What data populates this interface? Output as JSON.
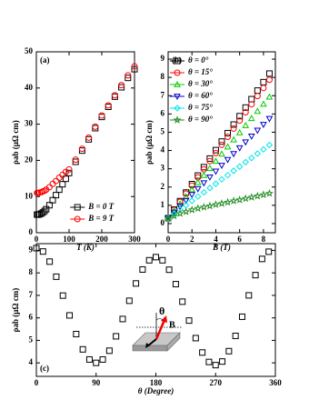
{
  "chart_data": [
    {
      "type": "scatter",
      "label": "(a)",
      "xlabel": "T (K)",
      "ylabel": "ρab (μΩ cm)",
      "xlim": [
        0,
        300
      ],
      "xticks": [
        0,
        100,
        200,
        300
      ],
      "ylim": [
        0,
        50
      ],
      "yticks": [
        0,
        10,
        20,
        30,
        40,
        50
      ],
      "legend": "lower right",
      "x": [
        2,
        5,
        10,
        15,
        20,
        25,
        30,
        40,
        50,
        60,
        70,
        80,
        90,
        100,
        120,
        140,
        160,
        180,
        200,
        220,
        240,
        260,
        280,
        300
      ],
      "series": [
        {
          "name": "B = 0 T",
          "color": "#000000",
          "marker": "square",
          "values": [
            5.0,
            5.0,
            5.1,
            5.3,
            5.6,
            6.0,
            6.5,
            7.6,
            9.0,
            10.4,
            11.9,
            13.4,
            14.9,
            16.5,
            19.6,
            22.7,
            25.8,
            28.9,
            32.0,
            34.8,
            37.6,
            40.2,
            42.8,
            45.2
          ]
        },
        {
          "name": "B = 9 T",
          "color": "#ff0000",
          "marker": "circle",
          "values": [
            11.0,
            11.0,
            11.1,
            11.2,
            11.4,
            11.6,
            11.9,
            12.6,
            13.5,
            14.3,
            15.2,
            16.0,
            16.8,
            17.5,
            20.2,
            23.2,
            26.3,
            29.3,
            32.4,
            35.2,
            38.0,
            40.8,
            43.5,
            46.0
          ]
        }
      ]
    },
    {
      "type": "scatter",
      "label": "(b)",
      "xlabel": "B (T)",
      "ylabel": "ρab (μΩ cm)",
      "xlim": [
        0,
        9
      ],
      "xticks": [
        0,
        2,
        4,
        6,
        8
      ],
      "ylim": [
        -0.5,
        9.4
      ],
      "yticks": [
        0,
        1,
        2,
        3,
        4,
        5,
        6,
        7,
        8,
        9
      ],
      "legend": "upper left",
      "x": [
        0,
        0.5,
        1,
        1.5,
        2,
        2.5,
        3,
        3.5,
        4,
        4.5,
        5,
        5.5,
        6,
        6.5,
        7,
        7.5,
        8,
        8.5
      ],
      "series": [
        {
          "name": "θ = 0°",
          "color": "#000000",
          "marker": "square",
          "values": [
            0.3,
            0.77,
            1.23,
            1.7,
            2.16,
            2.63,
            3.09,
            3.56,
            4.02,
            4.49,
            4.95,
            5.42,
            5.88,
            6.35,
            6.81,
            7.28,
            7.74,
            8.21
          ]
        },
        {
          "name": "θ = 15°",
          "color": "#ff0000",
          "marker": "circle",
          "values": [
            0.3,
            0.75,
            1.19,
            1.64,
            2.08,
            2.53,
            2.97,
            3.42,
            3.86,
            4.31,
            4.75,
            5.2,
            5.64,
            6.09,
            6.53,
            6.98,
            7.42,
            7.87
          ]
        },
        {
          "name": "θ = 30°",
          "color": "#00cc00",
          "marker": "triangle",
          "values": [
            0.3,
            0.69,
            1.08,
            1.47,
            1.86,
            2.25,
            2.64,
            3.03,
            3.42,
            3.81,
            4.2,
            4.59,
            4.98,
            5.37,
            5.76,
            6.15,
            6.54,
            6.93
          ]
        },
        {
          "name": "θ = 60°",
          "color": "#0000cc",
          "marker": "triangle-down",
          "values": [
            0.3,
            0.62,
            0.94,
            1.26,
            1.58,
            1.9,
            2.22,
            2.54,
            2.86,
            3.18,
            3.5,
            3.82,
            4.14,
            4.46,
            4.78,
            5.1,
            5.42,
            5.74
          ]
        },
        {
          "name": "θ = 75°",
          "color": "#00e5ee",
          "marker": "diamond",
          "values": [
            0.3,
            0.54,
            0.77,
            1.01,
            1.24,
            1.48,
            1.71,
            1.95,
            2.18,
            2.42,
            2.65,
            2.89,
            3.12,
            3.36,
            3.59,
            3.83,
            4.06,
            4.3
          ]
        },
        {
          "name": "θ = 90°",
          "color": "#228b22",
          "marker": "star",
          "values": [
            0.3,
            0.42,
            0.55,
            0.65,
            0.75,
            0.83,
            0.9,
            0.97,
            1.04,
            1.1,
            1.17,
            1.24,
            1.3,
            1.37,
            1.44,
            1.51,
            1.58,
            1.65
          ]
        }
      ]
    },
    {
      "type": "scatter",
      "label": "(c)",
      "xlabel": "θ (Degree)",
      "ylabel": "ρab (μΩ cm)",
      "xlim": [
        0,
        360
      ],
      "xticks": [
        0,
        90,
        180,
        270,
        360
      ],
      "ylim": [
        3.4,
        9.3
      ],
      "yticks": [
        4,
        5,
        6,
        7,
        8,
        9
      ],
      "annotations": [
        "θ",
        "B"
      ],
      "x": [
        0,
        10,
        20,
        30,
        40,
        50,
        60,
        70,
        80,
        90,
        100,
        110,
        120,
        130,
        140,
        150,
        160,
        170,
        180,
        190,
        200,
        210,
        220,
        230,
        240,
        250,
        260,
        270,
        280,
        290,
        300,
        310,
        320,
        330,
        340,
        350
      ],
      "series": [
        {
          "color": "#000000",
          "marker": "square",
          "values": [
            9.1,
            8.95,
            8.5,
            7.83,
            6.99,
            6.11,
            5.28,
            4.6,
            4.15,
            4.0,
            4.15,
            4.54,
            5.18,
            5.95,
            6.76,
            7.53,
            8.15,
            8.56,
            8.7,
            8.56,
            8.14,
            7.5,
            6.72,
            5.88,
            5.1,
            4.46,
            4.04,
            3.9,
            4.06,
            4.52,
            5.2,
            6.05,
            7.0,
            7.9,
            8.62,
            8.94
          ]
        }
      ]
    }
  ]
}
